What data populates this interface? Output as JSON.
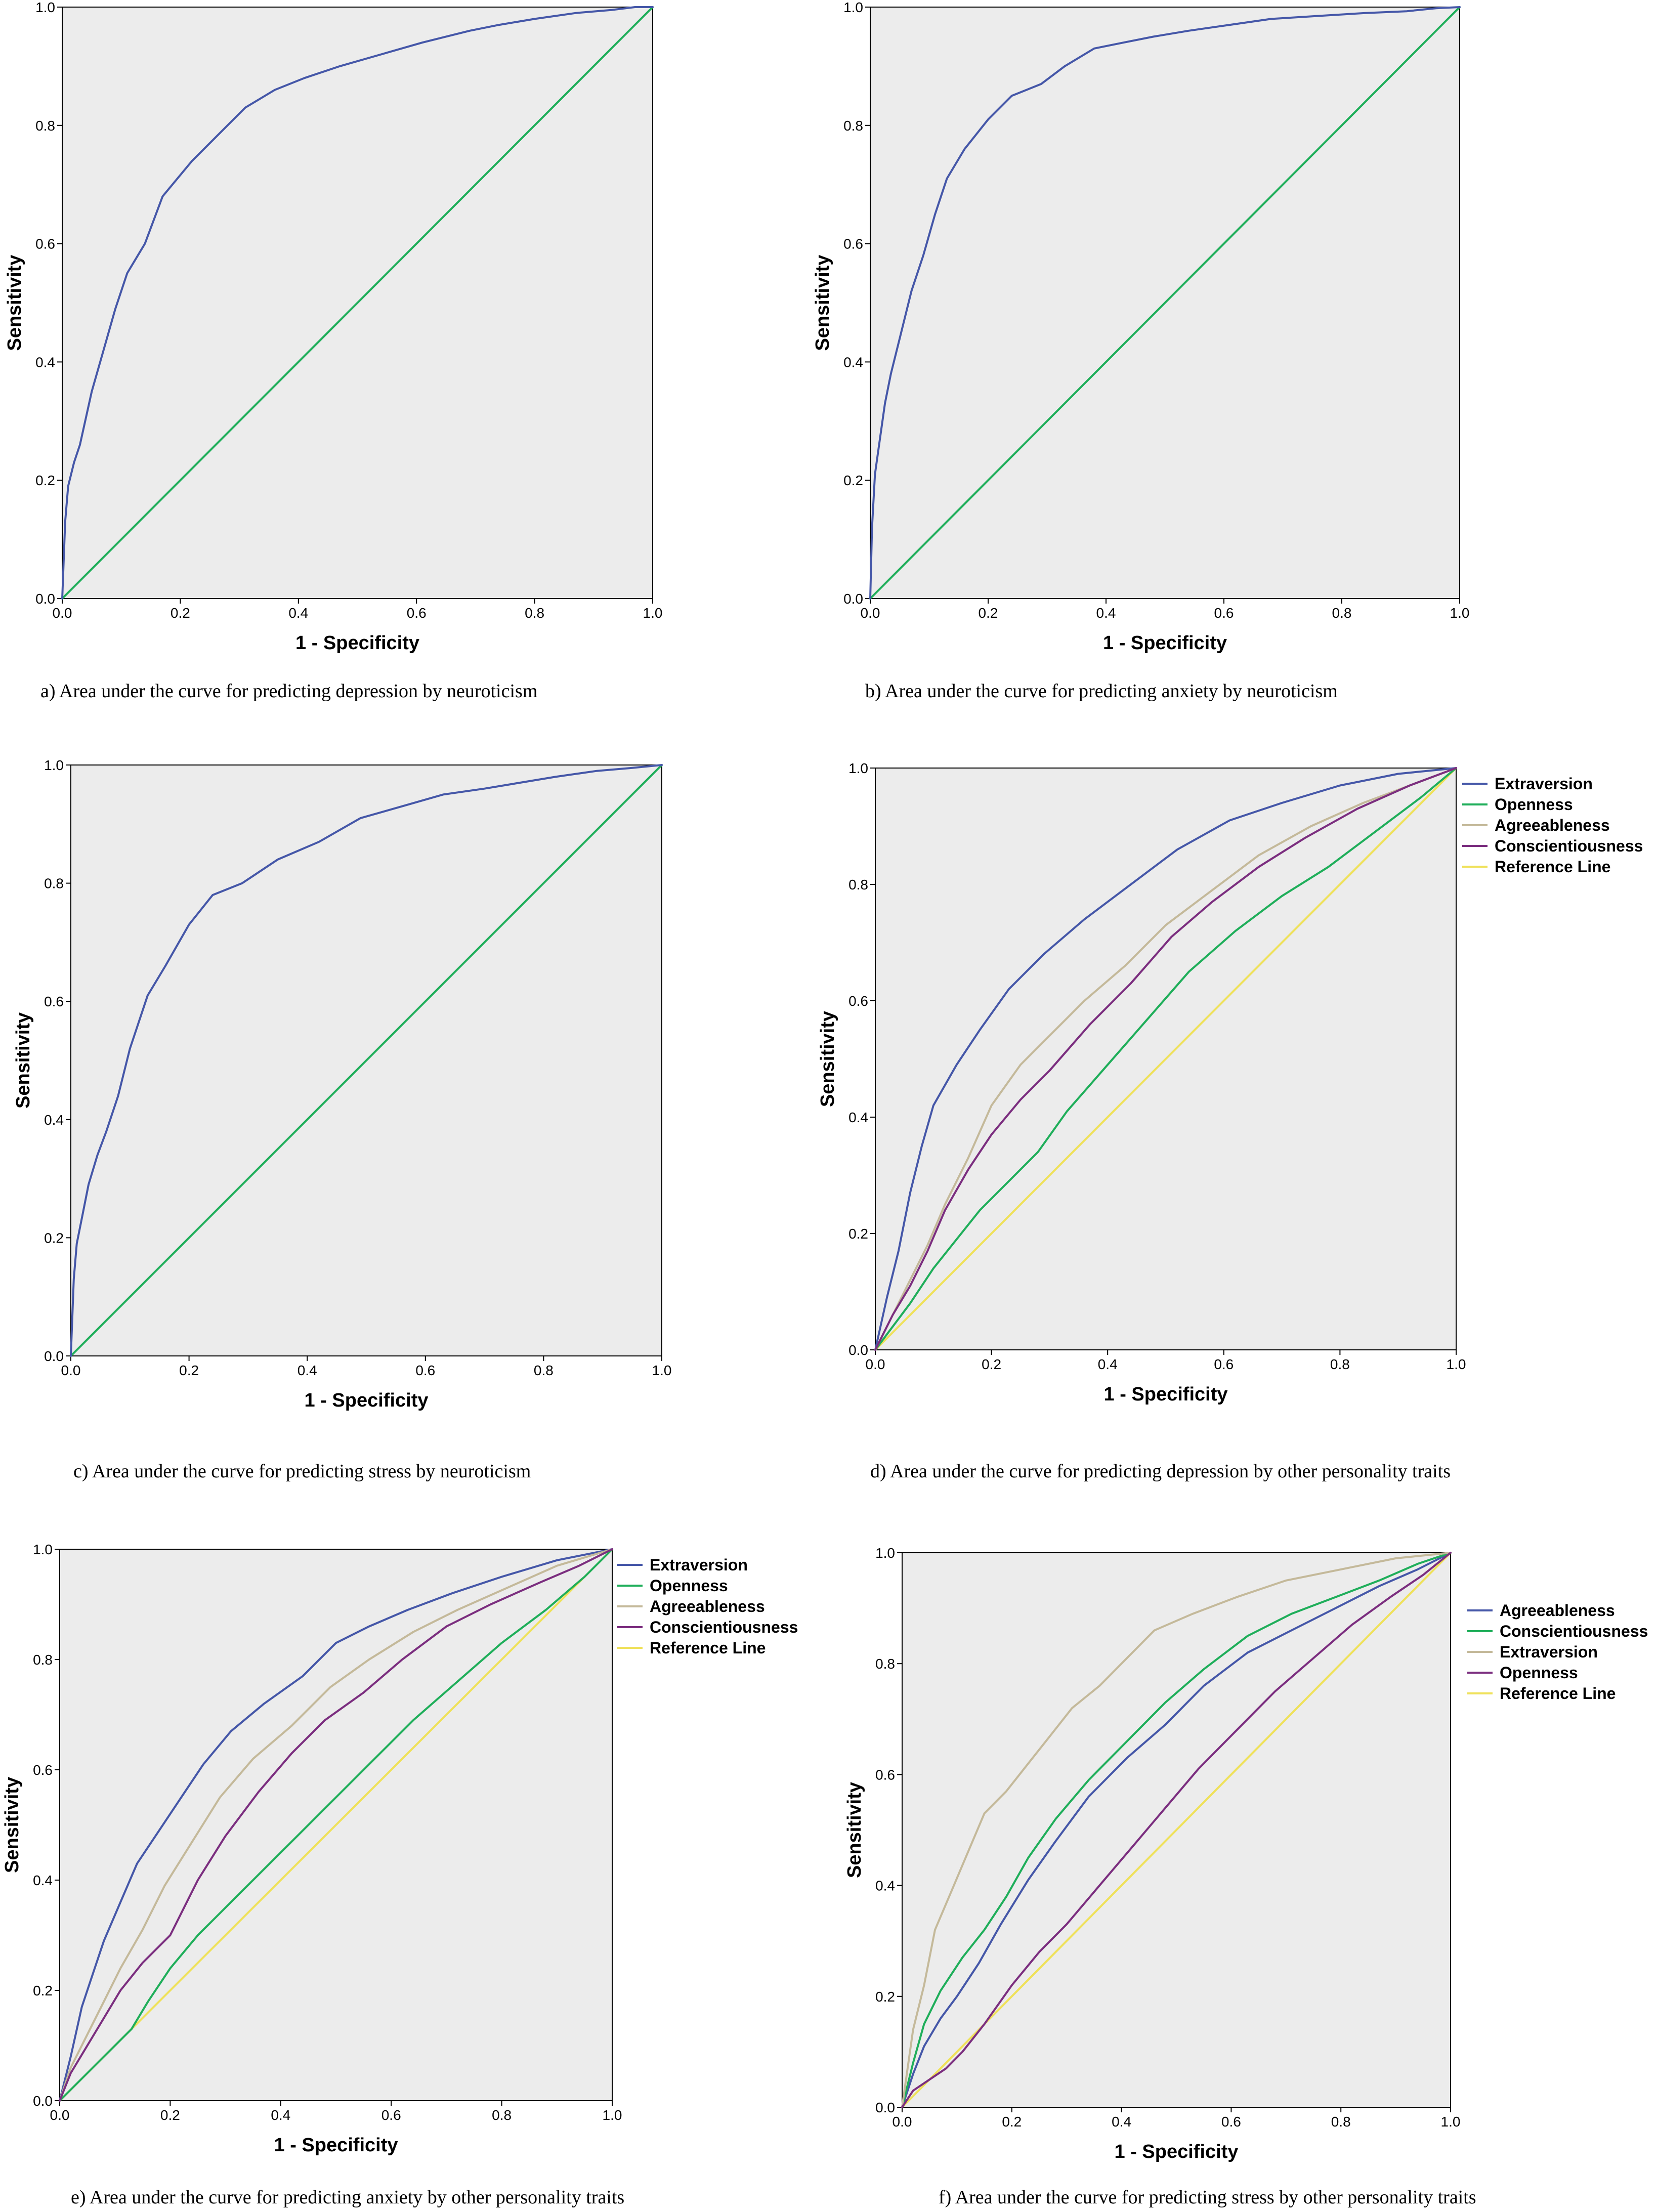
{
  "chart_data": [
    {
      "type": "line",
      "panel": "a",
      "caption": "a)   Area under the curve for predicting depression by neuroticism",
      "xlabel": "1 - Specificity",
      "ylabel": "Sensitivity",
      "xlim": [
        0,
        1
      ],
      "ylim": [
        0,
        1
      ],
      "xticks": [
        "0.0",
        "0.2",
        "0.4",
        "0.6",
        "0.8",
        "1.0"
      ],
      "yticks": [
        "0.0",
        "0.2",
        "0.4",
        "0.6",
        "0.8",
        "1.0"
      ],
      "legend": [],
      "series": [
        {
          "name": "Neuroticism",
          "color": "#4557a8",
          "x": [
            0,
            0.005,
            0.01,
            0.02,
            0.03,
            0.05,
            0.07,
            0.09,
            0.11,
            0.14,
            0.17,
            0.22,
            0.26,
            0.31,
            0.36,
            0.41,
            0.47,
            0.54,
            0.61,
            0.69,
            0.74,
            0.8,
            0.87,
            0.93,
            0.97,
            1.0
          ],
          "y": [
            0,
            0.13,
            0.19,
            0.23,
            0.26,
            0.35,
            0.42,
            0.49,
            0.55,
            0.6,
            0.68,
            0.74,
            0.78,
            0.83,
            0.86,
            0.88,
            0.9,
            0.92,
            0.94,
            0.96,
            0.97,
            0.98,
            0.99,
            0.995,
            1.0,
            1.0
          ]
        },
        {
          "name": "Reference Line",
          "color": "#1fae5a",
          "x": [
            0,
            1
          ],
          "y": [
            0,
            1
          ]
        }
      ]
    },
    {
      "type": "line",
      "panel": "b",
      "caption": "b)   Area under the curve for predicting anxiety by neuroticism",
      "xlabel": "1 - Specificity",
      "ylabel": "Sensitivity",
      "xlim": [
        0,
        1
      ],
      "ylim": [
        0,
        1
      ],
      "xticks": [
        "0.0",
        "0.2",
        "0.4",
        "0.6",
        "0.8",
        "1.0"
      ],
      "yticks": [
        "0.0",
        "0.2",
        "0.4",
        "0.6",
        "0.8",
        "1.0"
      ],
      "legend": [],
      "series": [
        {
          "name": "Neuroticism",
          "color": "#4557a8",
          "x": [
            0,
            0.003,
            0.008,
            0.015,
            0.025,
            0.035,
            0.05,
            0.07,
            0.09,
            0.11,
            0.13,
            0.16,
            0.2,
            0.24,
            0.29,
            0.33,
            0.38,
            0.43,
            0.48,
            0.54,
            0.61,
            0.68,
            0.76,
            0.84,
            0.91,
            0.96,
            1.0
          ],
          "y": [
            0,
            0.12,
            0.21,
            0.26,
            0.33,
            0.38,
            0.44,
            0.52,
            0.58,
            0.65,
            0.71,
            0.76,
            0.81,
            0.85,
            0.87,
            0.9,
            0.93,
            0.94,
            0.95,
            0.96,
            0.97,
            0.98,
            0.985,
            0.99,
            0.993,
            0.998,
            1.0
          ]
        },
        {
          "name": "Reference Line",
          "color": "#1fae5a",
          "x": [
            0,
            1
          ],
          "y": [
            0,
            1
          ]
        }
      ]
    },
    {
      "type": "line",
      "panel": "c",
      "caption": "c)   Area under the curve for predicting stress by neuroticism",
      "xlabel": "1 - Specificity",
      "ylabel": "Sensitivity",
      "xlim": [
        0,
        1
      ],
      "ylim": [
        0,
        1
      ],
      "xticks": [
        "0.0",
        "0.2",
        "0.4",
        "0.6",
        "0.8",
        "1.0"
      ],
      "yticks": [
        "0.0",
        "0.2",
        "0.4",
        "0.6",
        "0.8",
        "1.0"
      ],
      "legend": [],
      "series": [
        {
          "name": "Neuroticism",
          "color": "#4557a8",
          "x": [
            0,
            0.005,
            0.01,
            0.02,
            0.03,
            0.045,
            0.06,
            0.08,
            0.1,
            0.13,
            0.16,
            0.2,
            0.24,
            0.29,
            0.35,
            0.42,
            0.49,
            0.56,
            0.63,
            0.7,
            0.76,
            0.82,
            0.89,
            0.95,
            1.0
          ],
          "y": [
            0,
            0.13,
            0.19,
            0.24,
            0.29,
            0.34,
            0.38,
            0.44,
            0.52,
            0.61,
            0.66,
            0.73,
            0.78,
            0.8,
            0.84,
            0.87,
            0.91,
            0.93,
            0.95,
            0.96,
            0.97,
            0.98,
            0.99,
            0.995,
            1.0
          ]
        },
        {
          "name": "Reference Line",
          "color": "#1fae5a",
          "x": [
            0,
            1
          ],
          "y": [
            0,
            1
          ]
        }
      ]
    },
    {
      "type": "line",
      "panel": "d",
      "caption": "d)   Area under the curve for predicting depression by other personality traits",
      "xlabel": "1 - Specificity",
      "ylabel": "Sensitivity",
      "xlim": [
        0,
        1
      ],
      "ylim": [
        0,
        1
      ],
      "xticks": [
        "0.0",
        "0.2",
        "0.4",
        "0.6",
        "0.8",
        "1.0"
      ],
      "yticks": [
        "0.0",
        "0.2",
        "0.4",
        "0.6",
        "0.8",
        "1.0"
      ],
      "legend": [
        "Extraversion",
        "Openness",
        "Agreeableness",
        "Conscientiousness",
        "Reference Line"
      ],
      "series": [
        {
          "name": "Extraversion",
          "color": "#4557a8",
          "x": [
            0,
            0.02,
            0.04,
            0.06,
            0.08,
            0.1,
            0.14,
            0.18,
            0.23,
            0.29,
            0.36,
            0.44,
            0.52,
            0.61,
            0.7,
            0.8,
            0.9,
            1.0
          ],
          "y": [
            0,
            0.09,
            0.17,
            0.27,
            0.35,
            0.42,
            0.49,
            0.55,
            0.62,
            0.68,
            0.74,
            0.8,
            0.86,
            0.91,
            0.94,
            0.97,
            0.99,
            1.0
          ]
        },
        {
          "name": "Openness",
          "color": "#1fae5a",
          "x": [
            0,
            0.03,
            0.06,
            0.1,
            0.14,
            0.18,
            0.23,
            0.28,
            0.33,
            0.4,
            0.47,
            0.54,
            0.62,
            0.7,
            0.78,
            0.86,
            0.94,
            1.0
          ],
          "y": [
            0,
            0.04,
            0.08,
            0.14,
            0.19,
            0.24,
            0.29,
            0.34,
            0.41,
            0.49,
            0.57,
            0.65,
            0.72,
            0.78,
            0.83,
            0.89,
            0.95,
            1.0
          ]
        },
        {
          "name": "Agreeableness",
          "color": "#c4b99a",
          "x": [
            0,
            0.03,
            0.06,
            0.09,
            0.12,
            0.16,
            0.2,
            0.25,
            0.3,
            0.36,
            0.43,
            0.5,
            0.58,
            0.66,
            0.75,
            0.84,
            0.92,
            1.0
          ],
          "y": [
            0,
            0.06,
            0.12,
            0.18,
            0.25,
            0.33,
            0.42,
            0.49,
            0.54,
            0.6,
            0.66,
            0.73,
            0.79,
            0.85,
            0.9,
            0.94,
            0.97,
            1.0
          ]
        },
        {
          "name": "Conscientiousness",
          "color": "#7b2e7f",
          "x": [
            0,
            0.03,
            0.06,
            0.09,
            0.12,
            0.16,
            0.2,
            0.25,
            0.3,
            0.37,
            0.44,
            0.51,
            0.58,
            0.66,
            0.74,
            0.83,
            0.92,
            1.0
          ],
          "y": [
            0,
            0.06,
            0.11,
            0.17,
            0.24,
            0.31,
            0.37,
            0.43,
            0.48,
            0.56,
            0.63,
            0.71,
            0.77,
            0.83,
            0.88,
            0.93,
            0.97,
            1.0
          ]
        },
        {
          "name": "Reference Line",
          "color": "#efe15a",
          "x": [
            0,
            1
          ],
          "y": [
            0,
            1
          ]
        }
      ]
    },
    {
      "type": "line",
      "panel": "e",
      "caption": "e)   Area under the curve for predicting anxiety by other personality traits",
      "xlabel": "1 - Specificity",
      "ylabel": "Sensitivity",
      "xlim": [
        0,
        1
      ],
      "ylim": [
        0,
        1
      ],
      "xticks": [
        "0.0",
        "0.2",
        "0.4",
        "0.6",
        "0.8",
        "1.0"
      ],
      "yticks": [
        "0.0",
        "0.2",
        "0.4",
        "0.6",
        "0.8",
        "1.0"
      ],
      "legend": [
        "Extraversion",
        "Openness",
        "Agreeableness",
        "Conscientiousness",
        "Reference Line"
      ],
      "series": [
        {
          "name": "Extraversion",
          "color": "#4557a8",
          "x": [
            0,
            0.02,
            0.04,
            0.06,
            0.08,
            0.11,
            0.14,
            0.18,
            0.22,
            0.26,
            0.31,
            0.37,
            0.44,
            0.5,
            0.56,
            0.63,
            0.71,
            0.8,
            0.9,
            1.0
          ],
          "y": [
            0,
            0.08,
            0.17,
            0.23,
            0.29,
            0.36,
            0.43,
            0.49,
            0.55,
            0.61,
            0.67,
            0.72,
            0.77,
            0.83,
            0.86,
            0.89,
            0.92,
            0.95,
            0.98,
            1.0
          ]
        },
        {
          "name": "Openness",
          "color": "#1fae5a",
          "x": [
            0,
            0.02,
            0.05,
            0.09,
            0.13,
            0.16,
            0.2,
            0.25,
            0.3,
            0.36,
            0.43,
            0.5,
            0.57,
            0.64,
            0.72,
            0.8,
            0.88,
            0.95,
            1.0
          ],
          "y": [
            0,
            0.02,
            0.05,
            0.09,
            0.13,
            0.18,
            0.24,
            0.3,
            0.35,
            0.41,
            0.48,
            0.55,
            0.62,
            0.69,
            0.76,
            0.83,
            0.89,
            0.95,
            1.0
          ]
        },
        {
          "name": "Agreeableness",
          "color": "#c4b99a",
          "x": [
            0,
            0.02,
            0.05,
            0.08,
            0.11,
            0.15,
            0.19,
            0.24,
            0.29,
            0.35,
            0.42,
            0.49,
            0.56,
            0.64,
            0.72,
            0.81,
            0.9,
            1.0
          ],
          "y": [
            0,
            0.06,
            0.12,
            0.18,
            0.24,
            0.31,
            0.39,
            0.47,
            0.55,
            0.62,
            0.68,
            0.75,
            0.8,
            0.85,
            0.89,
            0.93,
            0.97,
            1.0
          ]
        },
        {
          "name": "Conscientiousness",
          "color": "#7b2e7f",
          "x": [
            0,
            0.02,
            0.05,
            0.08,
            0.11,
            0.15,
            0.2,
            0.25,
            0.3,
            0.36,
            0.42,
            0.48,
            0.55,
            0.62,
            0.7,
            0.78,
            0.87,
            0.94,
            1.0
          ],
          "y": [
            0,
            0.05,
            0.1,
            0.15,
            0.2,
            0.25,
            0.3,
            0.4,
            0.48,
            0.56,
            0.63,
            0.69,
            0.74,
            0.8,
            0.86,
            0.9,
            0.94,
            0.97,
            1.0
          ]
        },
        {
          "name": "Reference Line",
          "color": "#efe15a",
          "x": [
            0,
            1
          ],
          "y": [
            0,
            1
          ]
        }
      ]
    },
    {
      "type": "line",
      "panel": "f",
      "caption": "f)   Area under the curve for predicting stress by other personality traits",
      "xlabel": "1 - Specificity",
      "ylabel": "Sensitivity",
      "xlim": [
        0,
        1
      ],
      "ylim": [
        0,
        1
      ],
      "xticks": [
        "0.0",
        "0.2",
        "0.4",
        "0.6",
        "0.8",
        "1.0"
      ],
      "yticks": [
        "0.0",
        "0.2",
        "0.4",
        "0.6",
        "0.8",
        "1.0"
      ],
      "legend": [
        "Agreeableness",
        "Conscientiousness",
        "Extraversion",
        "Openness",
        "Reference Line"
      ],
      "series": [
        {
          "name": "Agreeableness",
          "color": "#4557a8",
          "x": [
            0,
            0.02,
            0.04,
            0.07,
            0.1,
            0.14,
            0.18,
            0.23,
            0.28,
            0.34,
            0.41,
            0.48,
            0.55,
            0.63,
            0.71,
            0.79,
            0.87,
            0.94,
            1.0
          ],
          "y": [
            0,
            0.06,
            0.11,
            0.16,
            0.2,
            0.26,
            0.33,
            0.41,
            0.48,
            0.56,
            0.63,
            0.69,
            0.76,
            0.82,
            0.86,
            0.9,
            0.94,
            0.97,
            1.0
          ]
        },
        {
          "name": "Conscientiousness",
          "color": "#1fae5a",
          "x": [
            0,
            0.02,
            0.04,
            0.07,
            0.11,
            0.15,
            0.19,
            0.23,
            0.28,
            0.34,
            0.41,
            0.48,
            0.55,
            0.63,
            0.71,
            0.79,
            0.87,
            0.94,
            1.0
          ],
          "y": [
            0,
            0.08,
            0.15,
            0.21,
            0.27,
            0.32,
            0.38,
            0.45,
            0.52,
            0.59,
            0.66,
            0.73,
            0.79,
            0.85,
            0.89,
            0.92,
            0.95,
            0.98,
            1.0
          ]
        },
        {
          "name": "Extraversion",
          "color": "#c4b99a",
          "x": [
            0,
            0.01,
            0.02,
            0.04,
            0.06,
            0.09,
            0.12,
            0.15,
            0.19,
            0.23,
            0.27,
            0.31,
            0.36,
            0.41,
            0.46,
            0.53,
            0.61,
            0.7,
            0.8,
            0.9,
            1.0
          ],
          "y": [
            0,
            0.07,
            0.14,
            0.22,
            0.32,
            0.39,
            0.46,
            0.53,
            0.57,
            0.62,
            0.67,
            0.72,
            0.76,
            0.81,
            0.86,
            0.89,
            0.92,
            0.95,
            0.97,
            0.99,
            1.0
          ]
        },
        {
          "name": "Openness",
          "color": "#7b2e7f",
          "x": [
            0,
            0.02,
            0.05,
            0.08,
            0.11,
            0.15,
            0.2,
            0.25,
            0.3,
            0.36,
            0.42,
            0.48,
            0.54,
            0.61,
            0.68,
            0.75,
            0.82,
            0.89,
            0.95,
            1.0
          ],
          "y": [
            0,
            0.03,
            0.05,
            0.07,
            0.1,
            0.15,
            0.22,
            0.28,
            0.33,
            0.4,
            0.47,
            0.54,
            0.61,
            0.68,
            0.75,
            0.81,
            0.87,
            0.92,
            0.96,
            1.0
          ]
        },
        {
          "name": "Reference Line",
          "color": "#efe15a",
          "x": [
            0,
            1
          ],
          "y": [
            0,
            1
          ]
        }
      ]
    }
  ]
}
